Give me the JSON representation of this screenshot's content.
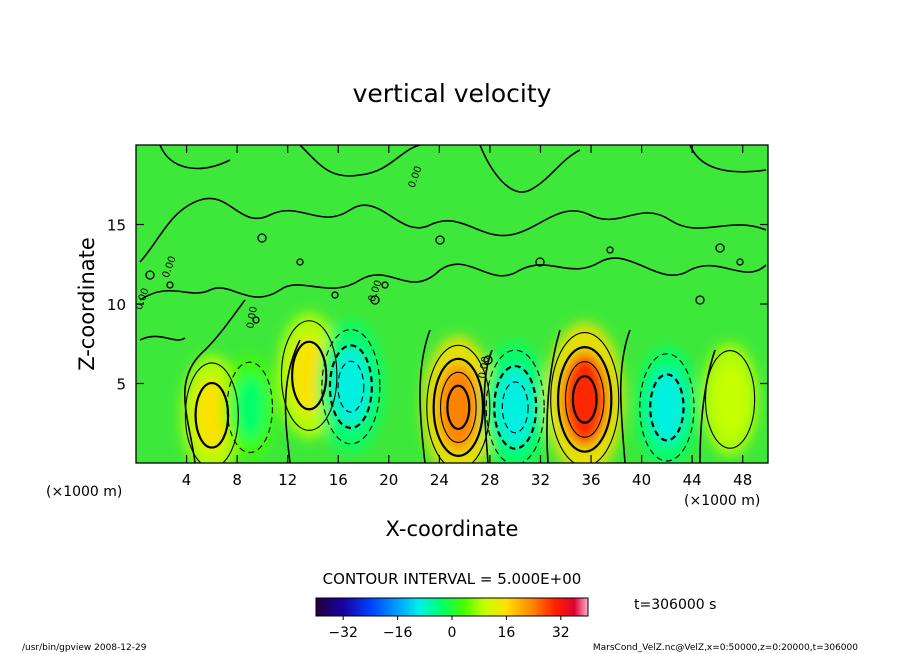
{
  "chart_data": {
    "type": "heatmap",
    "title": "vertical velocity",
    "xlabel": "X-coordinate",
    "ylabel": "Z-coordinate",
    "x_unit_left": "(×1000 m)",
    "x_unit_right": "(×1000 m)",
    "xlim": [
      0,
      50
    ],
    "ylim": [
      0,
      20
    ],
    "x_ticks": [
      "4",
      "8",
      "12",
      "16",
      "20",
      "24",
      "28",
      "32",
      "36",
      "40",
      "44",
      "48"
    ],
    "y_ticks": [
      "5",
      "10",
      "15"
    ],
    "contour_interval": "CONTOUR INTERVAL = 5.000E+00",
    "time_label": "t=306000 s",
    "colorbar": {
      "range": [
        -40,
        40
      ],
      "ticks": [
        "−32",
        "−16",
        "0",
        "16",
        "32"
      ],
      "tick_values": [
        -32,
        -16,
        0,
        16,
        32
      ],
      "colors": [
        "#200040",
        "#1a00a0",
        "#0040ff",
        "#00a0ff",
        "#00f0e8",
        "#00ff70",
        "#40ff00",
        "#c8ff00",
        "#ffe000",
        "#ff8000",
        "#ff2000",
        "#e00030",
        "#ffb0d0"
      ]
    },
    "contour_labels": [
      "0.00",
      "0.00",
      "0.00",
      "0.00",
      "0.00",
      "0.00"
    ],
    "cells": [
      {
        "name": "updraft",
        "x": 6,
        "z": 3,
        "w": 12
      },
      {
        "name": "downdraft",
        "x": 9,
        "z": 3.5,
        "w": -6
      },
      {
        "name": "updraft",
        "x": 13.7,
        "z": 5.5,
        "w": 14
      },
      {
        "name": "downdraft",
        "x": 17,
        "z": 4.8,
        "w": -16
      },
      {
        "name": "updraft",
        "x": 25.5,
        "z": 3.5,
        "w": 20
      },
      {
        "name": "downdraft",
        "x": 30,
        "z": 3.5,
        "w": -16
      },
      {
        "name": "updraft",
        "x": 35.5,
        "z": 4,
        "w": 24
      },
      {
        "name": "downdraft",
        "x": 42,
        "z": 3.5,
        "w": -13
      },
      {
        "name": "updraft",
        "x": 47,
        "z": 4,
        "w": 9
      }
    ]
  },
  "footer": {
    "left": "/usr/bin/gpview   2008-12-29",
    "right": "MarsCond_VelZ.nc@VelZ,x=0:50000,z=0:20000,t=306000"
  }
}
